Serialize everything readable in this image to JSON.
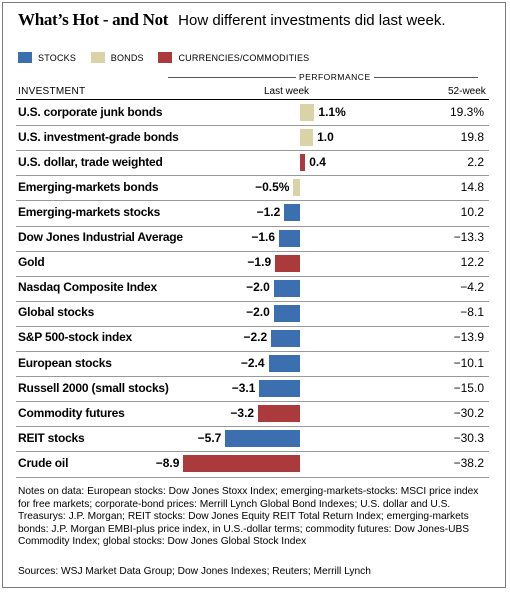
{
  "header": {
    "title": "What’s Hot - and Not",
    "subtitle": "How different investments did last week."
  },
  "legend": [
    {
      "label": "STOCKS",
      "color": "#3b6fb0"
    },
    {
      "label": "BONDS",
      "color": "#d9d3a7"
    },
    {
      "label": "CURRENCIES/COMMODITIES",
      "color": "#ab3a3c"
    }
  ],
  "table_header": {
    "group": "PERFORMANCE",
    "investment": "INVESTMENT",
    "last_week": "Last week",
    "week52": "52-week"
  },
  "rows": [
    {
      "name": "U.S. corporate junk bonds",
      "value_label": "1.1%",
      "week52": "19.3%"
    },
    {
      "name": "U.S. investment-grade bonds",
      "value_label": "1.0",
      "week52": "19.8"
    },
    {
      "name": "U.S. dollar, trade weighted",
      "value_label": "0.4",
      "week52": "2.2"
    },
    {
      "name": "Emerging-markets bonds",
      "value_label": "−0.5%",
      "week52": "14.8"
    },
    {
      "name": "Emerging-markets stocks",
      "value_label": "−1.2",
      "week52": "10.2"
    },
    {
      "name": "Dow Jones Industrial Average",
      "value_label": "−1.6",
      "week52": "−13.3"
    },
    {
      "name": "Gold",
      "value_label": "−1.9",
      "week52": "12.2"
    },
    {
      "name": "Nasdaq Composite Index",
      "value_label": "−2.0",
      "week52": "−4.2"
    },
    {
      "name": "Global stocks",
      "value_label": "−2.0",
      "week52": "−8.1"
    },
    {
      "name": "S&P 500-stock index",
      "value_label": "−2.2",
      "week52": "−13.9"
    },
    {
      "name": "European stocks",
      "value_label": "−2.4",
      "week52": "−10.1"
    },
    {
      "name": "Russell 2000 (small stocks)",
      "value_label": "−3.1",
      "week52": "−15.0"
    },
    {
      "name": "Commodity futures",
      "value_label": "−3.2",
      "week52": "−30.2"
    },
    {
      "name": "REIT stocks",
      "value_label": "−5.7",
      "week52": "−30.3"
    },
    {
      "name": "Crude oil",
      "value_label": "−8.9",
      "week52": "−38.2"
    }
  ],
  "chart_data": {
    "type": "bar",
    "orientation": "horizontal",
    "title": "What’s Hot - and Not",
    "subtitle": "How different investments did last week.",
    "categories": [
      "U.S. corporate junk bonds",
      "U.S. investment-grade bonds",
      "U.S. dollar, trade weighted",
      "Emerging-markets bonds",
      "Emerging-markets stocks",
      "Dow Jones Industrial Average",
      "Gold",
      "Nasdaq Composite Index",
      "Global stocks",
      "S&P 500-stock index",
      "European stocks",
      "Russell 2000 (small stocks)",
      "Commodity futures",
      "REIT stocks",
      "Crude oil"
    ],
    "values": [
      1.1,
      1.0,
      0.4,
      -0.5,
      -1.2,
      -1.6,
      -1.9,
      -2.0,
      -2.0,
      -2.2,
      -2.4,
      -3.1,
      -3.2,
      -5.7,
      -8.9
    ],
    "classes": [
      "bonds",
      "bonds",
      "currencies/commodities",
      "bonds",
      "stocks",
      "stocks",
      "currencies/commodities",
      "stocks",
      "stocks",
      "stocks",
      "stocks",
      "stocks",
      "currencies/commodities",
      "stocks",
      "currencies/commodities"
    ],
    "week52": [
      19.3,
      19.8,
      2.2,
      14.8,
      10.2,
      -13.3,
      12.2,
      -4.2,
      -8.1,
      -13.9,
      -10.1,
      -15.0,
      -30.2,
      -30.3,
      -38.2
    ],
    "class_colors": {
      "stocks": "#3b6fb0",
      "bonds": "#d9d3a7",
      "currencies/commodities": "#ab3a3c"
    },
    "legend": [
      "STOCKS",
      "BONDS",
      "CURRENCIES/COMMODITIES"
    ],
    "legend_position": "top-left",
    "grid": false
  },
  "notes": "Notes on data: European stocks: Dow Jones Stoxx Index; emerging-markets-stocks: MSCI price index for free markets; corporate-bond prices: Merrill Lynch Global Bond Indexes; U.S. dollar and U.S. Treasurys: J.P. Morgan; REIT stocks: Dow Jones Equity REIT Total Return Index; emerging-markets bonds: J.P. Morgan EMBI-plus price index, in U.S.-dollar terms; commodity futures: Dow Jones-UBS Commodity Index; global stocks: Dow Jones Global Stock Index",
  "sources": "Sources: WSJ Market Data Group; Dow Jones Indexes; Reuters; Merrill Lynch"
}
